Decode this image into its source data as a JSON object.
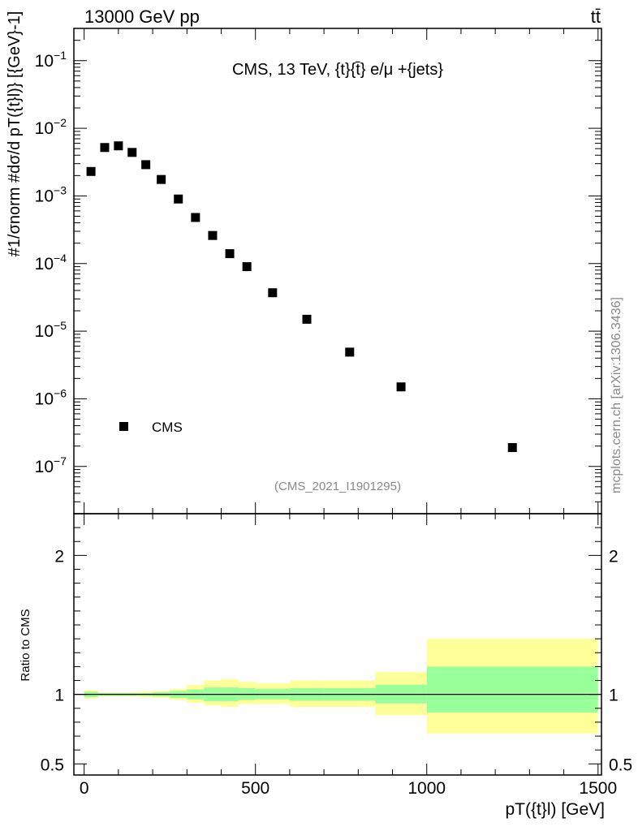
{
  "header": {
    "energy_label": "13000 GeV pp",
    "process_label": "tt̄"
  },
  "chart_data": [
    {
      "type": "scatter",
      "panel": "main",
      "title": "CMS, 13 TeV, {t}{t̄} e/μ +{jets}",
      "watermark": "(CMS_2021_I1901295)",
      "side_label": "mcplots.cern.ch [arXiv:1306.3436]",
      "ylabel": "#1/σnorm #dσ/d pT({t}l)} [{GeV}-1]",
      "yscale": "log",
      "ylim": [
        2e-08,
        0.3
      ],
      "xlim": [
        -30,
        1510
      ],
      "y_tick_labels": [
        "10^-7",
        "10^-6",
        "10^-5",
        "10^-4",
        "10^-3",
        "10^-2",
        "10^-1"
      ],
      "legend": {
        "label": "CMS",
        "position": "bottom-left"
      },
      "series": [
        {
          "name": "CMS",
          "x": [
            20,
            60,
            100,
            140,
            180,
            225,
            275,
            325,
            375,
            425,
            475,
            550,
            650,
            775,
            925,
            1250
          ],
          "y": [
            0.0023,
            0.0052,
            0.0055,
            0.0044,
            0.0029,
            0.00175,
            0.0009,
            0.00048,
            0.00026,
            0.00014,
            9e-05,
            3.7e-05,
            1.5e-05,
            4.9e-06,
            1.5e-06,
            1.9e-07
          ]
        }
      ]
    },
    {
      "type": "area",
      "panel": "ratio",
      "ylabel": "Ratio to CMS",
      "xlabel": "pT({t}l) [GeV]",
      "ylim": [
        0.42,
        2.3
      ],
      "xlim": [
        -30,
        1510
      ],
      "x_tick_labels": [
        "0",
        "500",
        "1000",
        "1500"
      ],
      "y_tick_labels": [
        "0.5",
        "1",
        "2"
      ],
      "reference_line": 1,
      "bin_edges": [
        0,
        40,
        80,
        120,
        160,
        200,
        250,
        300,
        350,
        400,
        450,
        500,
        600,
        700,
        850,
        1000,
        1500
      ],
      "band_outer_lo": [
        0.97,
        0.985,
        0.985,
        0.985,
        0.98,
        0.975,
        0.96,
        0.94,
        0.92,
        0.91,
        0.93,
        0.93,
        0.91,
        0.91,
        0.85,
        0.72
      ],
      "band_outer_hi": [
        1.03,
        1.015,
        1.015,
        1.015,
        1.02,
        1.025,
        1.04,
        1.07,
        1.1,
        1.11,
        1.09,
        1.08,
        1.1,
        1.1,
        1.16,
        1.4
      ],
      "band_inner_lo": [
        0.98,
        0.99,
        0.99,
        0.99,
        0.99,
        0.985,
        0.975,
        0.965,
        0.95,
        0.95,
        0.96,
        0.965,
        0.955,
        0.955,
        0.935,
        0.87
      ],
      "band_inner_hi": [
        1.02,
        1.01,
        1.01,
        1.01,
        1.01,
        1.015,
        1.025,
        1.035,
        1.05,
        1.05,
        1.045,
        1.04,
        1.045,
        1.045,
        1.07,
        1.2
      ],
      "colors": {
        "outer": "#ffff99",
        "inner": "#99ff99",
        "line": "#000000"
      }
    }
  ]
}
